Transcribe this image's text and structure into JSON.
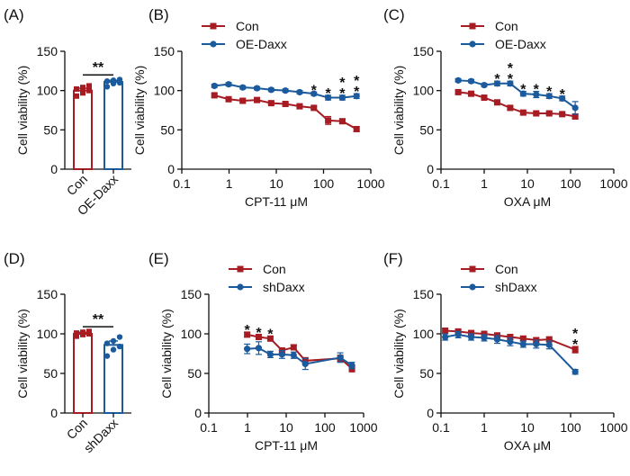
{
  "colors": {
    "con": "#a61c22",
    "treat": "#1b5a9c",
    "axis": "#111111"
  },
  "chart_data": [
    {
      "id": "A",
      "panel_label": "(A)",
      "type": "bar",
      "ylabel": "Cell viability (%)",
      "ylim": [
        0,
        150
      ],
      "yticks": [
        0,
        50,
        100,
        150
      ],
      "categories": [
        "Con",
        "OE-Daxx"
      ],
      "values": [
        100,
        111
      ],
      "errors": [
        3,
        2
      ],
      "points": [
        [
          93,
          97,
          100,
          102,
          104,
          106
        ],
        [
          105,
          109,
          110,
          112,
          113,
          114
        ]
      ],
      "significance": "**"
    },
    {
      "id": "B",
      "panel_label": "(B)",
      "type": "line",
      "xscale": "log",
      "xlim": [
        0.1,
        1000
      ],
      "xticks": [
        0.1,
        1,
        10,
        100,
        1000
      ],
      "xtick_labels": [
        "0.1",
        "1",
        "10",
        "100",
        "1000"
      ],
      "ylim": [
        0,
        150
      ],
      "yticks": [
        0,
        50,
        100,
        150
      ],
      "xlabel": "CPT-11 μM",
      "ylabel": "Cell viability (%)",
      "legend_position": "top-left",
      "series": [
        {
          "name": "Con",
          "marker": "square",
          "x": [
            0.49,
            0.98,
            1.95,
            3.9,
            7.8,
            15.6,
            31.2,
            62.5,
            125,
            250,
            500
          ],
          "values": [
            94,
            89,
            87,
            88,
            84,
            83,
            80,
            78,
            62,
            61,
            51
          ],
          "errors": [
            2,
            2,
            2,
            2,
            2,
            2,
            2,
            2,
            5,
            3,
            3
          ]
        },
        {
          "name": "OE-Daxx",
          "marker": "circle",
          "x": [
            0.49,
            0.98,
            1.95,
            3.9,
            7.8,
            15.6,
            31.2,
            62.5,
            125,
            250,
            500
          ],
          "values": [
            106,
            108,
            104,
            103,
            101,
            100,
            98,
            96,
            91,
            91,
            93
          ],
          "errors": [
            2,
            2,
            2,
            2,
            2,
            2,
            2,
            2,
            3,
            3,
            3
          ]
        }
      ],
      "annotations": [
        {
          "x": 62.5,
          "text": "*"
        },
        {
          "x": 125,
          "text": "*"
        },
        {
          "x": 250,
          "text": "**"
        },
        {
          "x": 500,
          "text": "**"
        }
      ]
    },
    {
      "id": "C",
      "panel_label": "(C)",
      "type": "line",
      "xscale": "log",
      "xlim": [
        0.1,
        1000
      ],
      "xticks": [
        0.1,
        1,
        10,
        100,
        1000
      ],
      "xtick_labels": [
        "0.1",
        "1",
        "10",
        "100",
        "1000"
      ],
      "ylim": [
        0,
        150
      ],
      "yticks": [
        0,
        50,
        100,
        150
      ],
      "xlabel": "OXA μM",
      "ylabel": "Cell viability (%)",
      "legend_position": "top-left",
      "series": [
        {
          "name": "Con",
          "marker": "square",
          "x": [
            0.25,
            0.5,
            1,
            2,
            4,
            8,
            16,
            32,
            64,
            128
          ],
          "values": [
            98,
            96,
            91,
            85,
            78,
            72,
            71,
            71,
            70,
            67
          ],
          "errors": [
            2,
            2,
            2,
            2,
            2,
            2,
            2,
            2,
            2,
            3
          ]
        },
        {
          "name": "OE-Daxx",
          "marker": "circle",
          "x": [
            0.25,
            0.5,
            1,
            2,
            4,
            8,
            16,
            32,
            64,
            128
          ],
          "values": [
            113,
            112,
            107,
            109,
            109,
            96,
            95,
            93,
            90,
            78
          ],
          "errors": [
            2,
            2,
            2,
            3,
            3,
            3,
            4,
            3,
            3,
            8
          ]
        }
      ],
      "annotations": [
        {
          "x": 2,
          "text": "*"
        },
        {
          "x": 4,
          "text": "**"
        },
        {
          "x": 8,
          "text": "*"
        },
        {
          "x": 16,
          "text": "*"
        },
        {
          "x": 32,
          "text": "*"
        },
        {
          "x": 64,
          "text": "*"
        }
      ]
    },
    {
      "id": "D",
      "panel_label": "(D)",
      "type": "bar",
      "ylabel": "Cell viability (%)",
      "ylim": [
        0,
        150
      ],
      "yticks": [
        0,
        50,
        100,
        150
      ],
      "categories": [
        "Con",
        "shDaxx"
      ],
      "values": [
        100,
        86
      ],
      "errors": [
        2,
        5
      ],
      "points": [
        [
          97,
          99,
          100,
          101,
          102,
          103
        ],
        [
          72,
          80,
          84,
          88,
          91,
          96
        ]
      ],
      "significance": "**"
    },
    {
      "id": "E",
      "panel_label": "(E)",
      "type": "line",
      "xscale": "log",
      "xlim": [
        0.1,
        1000
      ],
      "xticks": [
        0.1,
        1,
        10,
        100,
        1000
      ],
      "xtick_labels": [
        "0.1",
        "1",
        "10",
        "100",
        "1000"
      ],
      "ylim": [
        0,
        150
      ],
      "yticks": [
        0,
        50,
        100,
        150
      ],
      "xlabel": "CPT-11 μM",
      "ylabel": "Cell viability (%)",
      "legend_position": "top-left",
      "series": [
        {
          "name": "Con",
          "marker": "square",
          "x": [
            0.98,
            1.95,
            3.9,
            7.8,
            15.6,
            31.2,
            250,
            500
          ],
          "values": [
            99,
            96,
            94,
            79,
            83,
            66,
            69,
            56
          ],
          "errors": [
            3,
            3,
            3,
            3,
            3,
            4,
            4,
            4
          ]
        },
        {
          "name": "shDaxx",
          "marker": "circle",
          "x": [
            0.98,
            1.95,
            3.9,
            7.8,
            15.6,
            31.2,
            250,
            500
          ],
          "values": [
            81,
            82,
            74,
            74,
            73,
            62,
            70,
            60
          ],
          "errors": [
            6,
            8,
            4,
            5,
            4,
            7,
            6,
            4
          ]
        }
      ],
      "annotations": [
        {
          "x": 0.98,
          "text": "*"
        },
        {
          "x": 1.95,
          "text": "*"
        },
        {
          "x": 3.9,
          "text": "*"
        }
      ]
    },
    {
      "id": "F",
      "panel_label": "(F)",
      "type": "line",
      "xscale": "log",
      "xlim": [
        0.1,
        1000
      ],
      "xticks": [
        0.1,
        1,
        10,
        100,
        1000
      ],
      "xtick_labels": [
        "0.1",
        "1",
        "10",
        "100",
        "1000"
      ],
      "ylim": [
        0,
        150
      ],
      "yticks": [
        0,
        50,
        100,
        150
      ],
      "xlabel": "OXA μM",
      "ylabel": "Cell viability (%)",
      "legend_position": "top-left",
      "series": [
        {
          "name": "Con",
          "marker": "square",
          "x": [
            0.125,
            0.25,
            0.5,
            1,
            2,
            4,
            8,
            16,
            32,
            128
          ],
          "values": [
            104,
            103,
            101,
            100,
            98,
            96,
            94,
            92,
            93,
            80
          ],
          "errors": [
            3,
            3,
            3,
            3,
            3,
            3,
            3,
            3,
            3,
            4
          ]
        },
        {
          "name": "shDaxx",
          "marker": "circle",
          "x": [
            0.125,
            0.25,
            0.5,
            1,
            2,
            4,
            8,
            16,
            32,
            128
          ],
          "values": [
            96,
            99,
            96,
            95,
            93,
            90,
            87,
            87,
            86,
            52
          ],
          "errors": [
            4,
            4,
            4,
            4,
            5,
            5,
            4,
            5,
            5,
            3
          ]
        }
      ],
      "annotations": [
        {
          "x": 128,
          "text": "**"
        }
      ]
    }
  ]
}
